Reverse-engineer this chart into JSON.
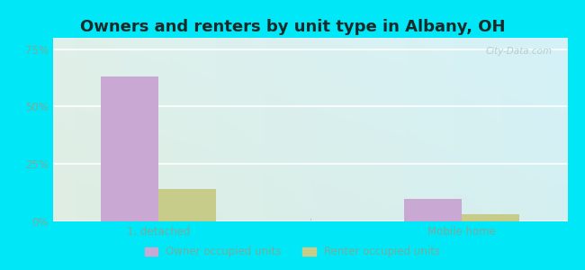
{
  "title": "Owners and renters by unit type in Albany, OH",
  "categories": [
    "1, detached",
    "Mobile home"
  ],
  "owner_values": [
    63,
    10
  ],
  "renter_values": [
    14,
    3
  ],
  "owner_color": "#c9a8d4",
  "renter_color": "#c8cc8a",
  "yticks": [
    0,
    25,
    50,
    75
  ],
  "ytick_labels": [
    "0%",
    "25%",
    "50%",
    "75%"
  ],
  "ylim": [
    0,
    80
  ],
  "bar_width": 0.38,
  "group_positions": [
    1.0,
    3.0
  ],
  "legend_owner": "Owner occupied units",
  "legend_renter": "Renter occupied units",
  "background_outer": "#00e8f8",
  "title_fontsize": 13,
  "title_color": "#1a2a2a",
  "watermark": "City-Data.com",
  "tick_color": "#7aaa99",
  "grid_color": "#ffffff"
}
